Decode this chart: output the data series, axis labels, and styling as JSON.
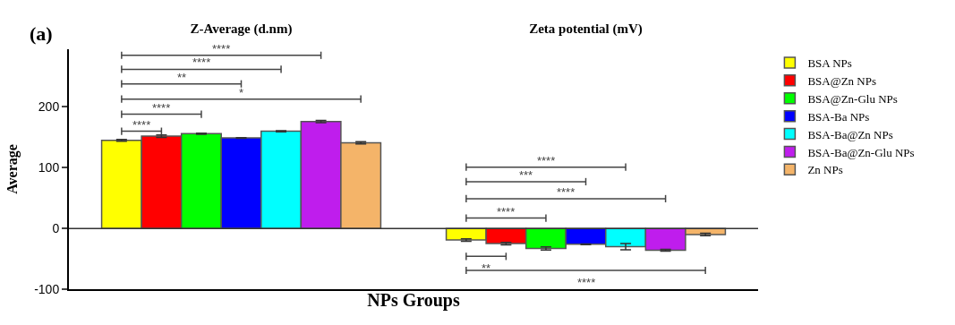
{
  "chart_data": {
    "type": "bar",
    "categories": [
      "Z-Average (d.nm)",
      "Zeta potential (mV)"
    ],
    "xlabel": "NPs Groups",
    "ylabel": "Average",
    "ylim": [
      -100,
      295
    ],
    "yticks": [
      -100,
      0,
      100,
      200
    ],
    "legend": "top right",
    "ref_lines": [
      {
        "axis": "y",
        "value": 0
      }
    ],
    "series": [
      {
        "name": "BSA NPs",
        "color": "#ffff00",
        "values": [
          145,
          -19
        ],
        "errors": [
          1.5,
          2
        ]
      },
      {
        "name": "BSA@Zn NPs",
        "color": "#ff0000",
        "values": [
          152,
          -25
        ],
        "errors": [
          2,
          2
        ]
      },
      {
        "name": "BSA@Zn-Glu NPs",
        "color": "#00ff00",
        "values": [
          156,
          -33
        ],
        "errors": [
          1,
          2.5
        ]
      },
      {
        "name": "BSA-Ba NPs",
        "color": "#0000ff",
        "values": [
          149,
          -26
        ],
        "errors": [
          0.5,
          0.5
        ]
      },
      {
        "name": "BSA-Ba@Zn NPs",
        "color": "#00ffff",
        "values": [
          160,
          -30
        ],
        "errors": [
          1,
          5
        ]
      },
      {
        "name": "BSA-Ba@Zn-Glu NPs",
        "color": "#bf1ded",
        "values": [
          176,
          -36
        ],
        "errors": [
          2,
          1.5
        ]
      },
      {
        "name": "Zn NPs",
        "color": "#f4b469",
        "values": [
          141,
          -10
        ],
        "errors": [
          2,
          2
        ]
      }
    ],
    "annotations": [
      "(a)",
      "****",
      "****",
      "**",
      "*",
      "****",
      "****",
      "****",
      "***",
      "****",
      "****",
      "**",
      "****"
    ]
  }
}
